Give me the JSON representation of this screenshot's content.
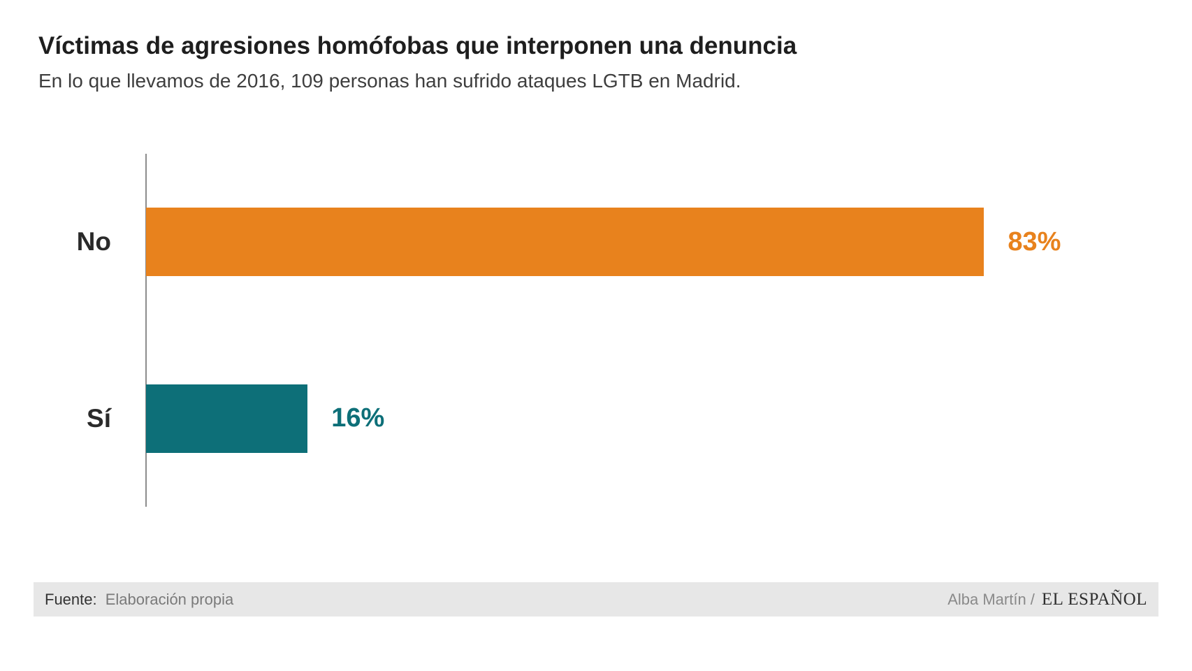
{
  "chart_data": {
    "type": "bar",
    "orientation": "horizontal",
    "title": "Víctimas de agresiones homófobas que interponen una denuncia",
    "subtitle": "En lo que llevamos de 2016, 109 personas han sufrido ataques LGTB en Madrid.",
    "categories": [
      "No",
      "Sí"
    ],
    "values": [
      83,
      16
    ],
    "value_labels": [
      "83%",
      "16%"
    ],
    "colors": [
      "#e8821d",
      "#0d6f78"
    ],
    "xlim": [
      0,
      100
    ],
    "grid": false,
    "legend": false,
    "axis_color": "#8c8c8c"
  },
  "footer": {
    "source_label": "Fuente:",
    "source_value": "Elaboración propia",
    "credit": "Alba Martín /",
    "brand": "EL ESPAÑOL"
  },
  "colors": {
    "no_bar": "#e8821d",
    "si_bar": "#0d6f78",
    "footer_bg": "#e7e7e7",
    "title_text": "#1e1e1e",
    "subtitle_text": "#3e3e3e"
  }
}
